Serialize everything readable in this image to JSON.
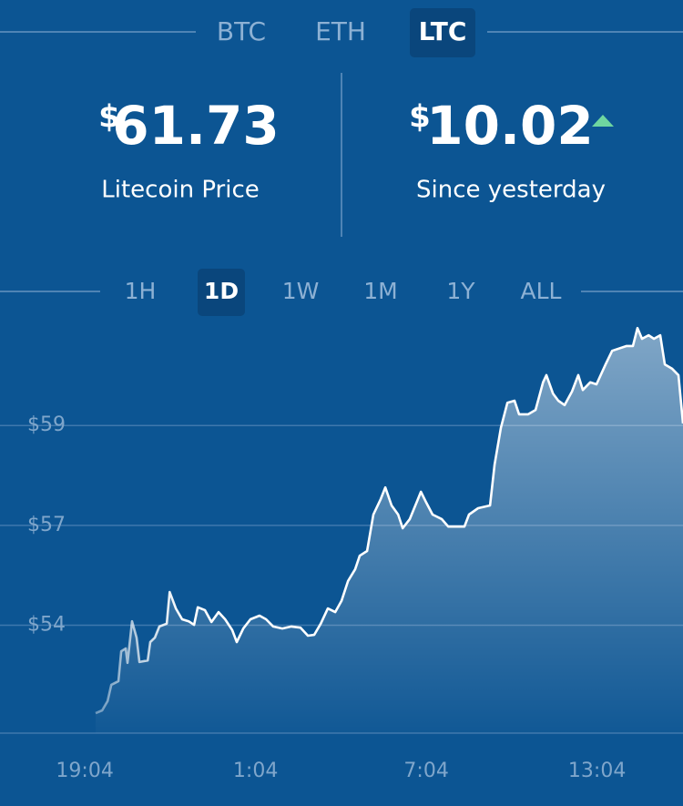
{
  "tabs": {
    "items": [
      "BTC",
      "ETH",
      "LTC"
    ],
    "active": 2
  },
  "price": {
    "currency": "$",
    "value": 61.73,
    "label": "Litecoin Price"
  },
  "change": {
    "currency": "$",
    "value": 10.02,
    "label": "Since yesterday"
  },
  "ranges": {
    "items": [
      "1H",
      "1D",
      "1W",
      "1M",
      "1Y",
      "ALL"
    ],
    "active": 1
  },
  "chart_data": {
    "type": "area",
    "color": "#ffffff",
    "x": [
      0.38,
      0.61,
      0.8,
      0.93,
      1.18,
      1.28,
      1.44,
      1.5,
      1.66,
      1.82,
      1.92,
      2.21,
      2.3,
      2.46,
      2.62,
      2.88,
      2.98,
      3.2,
      3.42,
      3.65,
      3.84,
      3.97,
      4.22,
      4.45,
      4.7,
      4.93,
      5.18,
      5.34,
      5.57,
      5.82,
      6.14,
      6.37,
      6.62,
      6.94,
      7.26,
      7.58,
      7.84,
      8.06,
      8.29,
      8.54,
      8.8,
      9.02,
      9.25,
      9.5,
      9.66,
      9.92,
      10.14,
      10.4,
      10.56,
      10.78,
      11.01,
      11.17,
      11.42,
      11.68,
      11.81,
      12.0,
      12.22,
      12.54,
      12.77,
      13.34,
      13.5,
      13.82,
      14.24,
      14.4,
      14.62,
      14.85,
      15.1,
      15.26,
      15.58,
      15.84,
      16.1,
      16.22,
      16.45,
      16.64,
      16.86,
      17.12,
      17.34,
      17.5,
      17.76,
      17.98,
      18.3,
      18.53,
      19.04,
      19.26,
      19.42,
      19.58,
      19.81,
      20.0,
      20.22,
      20.38,
      20.64,
      20.86,
      21.02
    ],
    "values": [
      52.0,
      52.07,
      52.3,
      52.71,
      52.8,
      53.55,
      53.62,
      53.26,
      54.3,
      53.89,
      53.28,
      53.32,
      53.78,
      53.89,
      54.17,
      54.24,
      55.03,
      54.62,
      54.35,
      54.3,
      54.21,
      54.65,
      54.58,
      54.28,
      54.53,
      54.35,
      54.08,
      53.78,
      54.12,
      54.35,
      54.44,
      54.35,
      54.17,
      54.12,
      54.17,
      54.14,
      53.94,
      53.96,
      54.24,
      54.62,
      54.53,
      54.81,
      55.31,
      55.6,
      55.94,
      56.06,
      56.97,
      57.36,
      57.65,
      57.2,
      56.97,
      56.63,
      56.86,
      57.31,
      57.54,
      57.27,
      56.97,
      56.86,
      56.67,
      56.67,
      56.97,
      57.13,
      57.2,
      58.22,
      59.14,
      59.77,
      59.82,
      59.48,
      59.48,
      59.59,
      60.28,
      60.46,
      60.0,
      59.82,
      59.71,
      60.05,
      60.46,
      60.09,
      60.28,
      60.23,
      60.73,
      61.07,
      61.19,
      61.19,
      61.64,
      61.37,
      61.46,
      61.37,
      61.46,
      60.73,
      60.62,
      60.46,
      59.25
    ],
    "xlim": [
      -2.98,
      21.02
    ],
    "ylim": [
      51.5,
      62.1
    ],
    "xticks": [
      {
        "value": 0,
        "label": "19:04"
      },
      {
        "value": 6,
        "label": "1:04"
      },
      {
        "value": 12,
        "label": "7:04"
      },
      {
        "value": 18,
        "label": "13:04"
      }
    ],
    "yticks": [
      {
        "value": 54.2,
        "label": "$54"
      },
      {
        "value": 56.7,
        "label": "$57"
      },
      {
        "value": 59.2,
        "label": "$59"
      }
    ],
    "grid": true
  }
}
